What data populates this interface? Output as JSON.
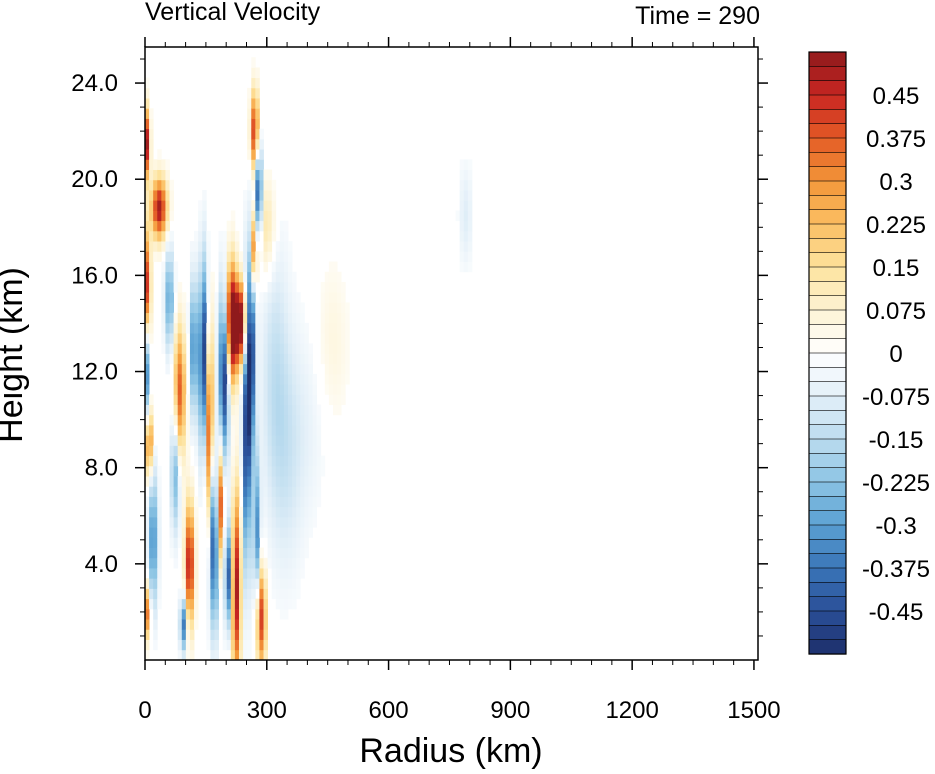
{
  "chart_data": {
    "type": "heatmap",
    "title": "Vertical Velocity",
    "subtitle": "Time = 290",
    "xlabel": "Radius (km)",
    "ylabel": "Height (km)",
    "xlim": [
      0,
      1510
    ],
    "ylim": [
      0,
      25.5
    ],
    "x_ticks": [
      0,
      300,
      600,
      900,
      1200,
      1500
    ],
    "x_tick_labels": [
      "0",
      "300",
      "600",
      "900",
      "1200",
      "1500"
    ],
    "y_ticks": [
      4,
      8,
      12,
      16,
      20,
      24
    ],
    "y_tick_labels": [
      "4.0",
      "8.0",
      "12.0",
      "16.0",
      "20.0",
      "24.0"
    ],
    "colorbar": {
      "min": -0.525,
      "max": 0.525,
      "step": 0.025,
      "label_values": [
        -0.45,
        -0.375,
        -0.3,
        -0.225,
        -0.15,
        -0.075,
        0,
        0.075,
        0.15,
        0.225,
        0.3,
        0.375,
        0.45
      ],
      "labels": [
        "-0.45",
        "-0.375",
        "-0.3",
        "-0.225",
        "-0.15",
        "-0.075",
        "0",
        "0.075",
        "0.15",
        "0.225",
        "0.3",
        "0.375",
        "0.45"
      ],
      "stops": [
        [
          -0.525,
          "#1d2f6b"
        ],
        [
          -0.45,
          "#2a4f98"
        ],
        [
          -0.375,
          "#3a75b8"
        ],
        [
          -0.3,
          "#5aa0d2"
        ],
        [
          -0.225,
          "#8cc4e4"
        ],
        [
          -0.15,
          "#bcdcef"
        ],
        [
          -0.075,
          "#e2eff8"
        ],
        [
          0,
          "#ffffff"
        ],
        [
          0.075,
          "#fdf3d4"
        ],
        [
          0.15,
          "#fde39e"
        ],
        [
          0.225,
          "#fbbf63"
        ],
        [
          0.3,
          "#f39639"
        ],
        [
          0.375,
          "#e35b26"
        ],
        [
          0.45,
          "#c92622"
        ],
        [
          0.525,
          "#8f1a1c"
        ]
      ]
    },
    "field_features": [
      {
        "r": 5,
        "z": 21.5,
        "sr": 5,
        "sz": 1.0,
        "w": 0.5
      },
      {
        "r": 35,
        "z": 18.8,
        "sr": 14,
        "sz": 0.9,
        "w": 0.5
      },
      {
        "r": 5,
        "z": 15.5,
        "sr": 6,
        "sz": 1.6,
        "w": 0.45
      },
      {
        "r": 0,
        "z": 12.0,
        "sr": 6,
        "sz": 1.5,
        "w": -0.5
      },
      {
        "r": 10,
        "z": 9.0,
        "sr": 6,
        "sz": 1.0,
        "w": 0.4
      },
      {
        "r": 20,
        "z": 5.0,
        "sr": 8,
        "sz": 2.0,
        "w": -0.35
      },
      {
        "r": 5,
        "z": 2.0,
        "sr": 6,
        "sz": 0.8,
        "w": 0.35
      },
      {
        "r": 60,
        "z": 15.0,
        "sr": 8,
        "sz": 1.5,
        "w": -0.3
      },
      {
        "r": 85,
        "z": 11.0,
        "sr": 10,
        "sz": 2.0,
        "w": 0.4
      },
      {
        "r": 75,
        "z": 8.0,
        "sr": 8,
        "sz": 1.8,
        "w": -0.3
      },
      {
        "r": 110,
        "z": 4.0,
        "sr": 8,
        "sz": 1.8,
        "w": 0.5
      },
      {
        "r": 95,
        "z": 1.5,
        "sr": 6,
        "sz": 0.8,
        "w": -0.4
      },
      {
        "r": 120,
        "z": 13.0,
        "sr": 7,
        "sz": 2.0,
        "w": -0.35
      },
      {
        "r": 145,
        "z": 12.5,
        "sr": 8,
        "sz": 2.8,
        "w": -0.55
      },
      {
        "r": 158,
        "z": 10.0,
        "sr": 7,
        "sz": 3.0,
        "w": 0.5
      },
      {
        "r": 170,
        "z": 5.0,
        "sr": 8,
        "sz": 2.5,
        "w": -0.5
      },
      {
        "r": 185,
        "z": 6.5,
        "sr": 6,
        "sz": 1.8,
        "w": 0.45
      },
      {
        "r": 195,
        "z": 12.0,
        "sr": 9,
        "sz": 2.5,
        "w": -0.55
      },
      {
        "r": 212,
        "z": 14.0,
        "sr": 10,
        "sz": 1.8,
        "w": 0.6
      },
      {
        "r": 235,
        "z": 14.0,
        "sr": 12,
        "sz": 1.2,
        "w": 0.6
      },
      {
        "r": 225,
        "z": 3.0,
        "sr": 8,
        "sz": 2.8,
        "w": 0.5
      },
      {
        "r": 205,
        "z": 3.5,
        "sr": 6,
        "sz": 1.5,
        "w": -0.45
      },
      {
        "r": 250,
        "z": 9.5,
        "sr": 7,
        "sz": 4.0,
        "w": -0.5
      },
      {
        "r": 262,
        "z": 13.0,
        "sr": 6,
        "sz": 3.0,
        "w": -0.55
      },
      {
        "r": 270,
        "z": 22.0,
        "sr": 7,
        "sz": 1.2,
        "w": 0.45
      },
      {
        "r": 280,
        "z": 19.5,
        "sr": 6,
        "sz": 1.3,
        "w": -0.5
      },
      {
        "r": 268,
        "z": 17.0,
        "sr": 5,
        "sz": 1.2,
        "w": 0.45
      },
      {
        "r": 275,
        "z": 5.0,
        "sr": 6,
        "sz": 2.5,
        "w": -0.35
      },
      {
        "r": 285,
        "z": 1.8,
        "sr": 9,
        "sz": 1.5,
        "w": 0.45
      },
      {
        "r": 320,
        "z": 12.0,
        "sr": 25,
        "sz": 4.0,
        "w": -0.12
      },
      {
        "r": 350,
        "z": 8.0,
        "sr": 30,
        "sz": 3.5,
        "w": -0.08
      },
      {
        "r": 300,
        "z": 18.0,
        "sr": 15,
        "sz": 1.5,
        "w": 0.15
      },
      {
        "r": 400,
        "z": 10.0,
        "sr": 40,
        "sz": 3.0,
        "w": -0.05
      },
      {
        "r": 460,
        "z": 13.0,
        "sr": 30,
        "sz": 2.5,
        "w": 0.06
      },
      {
        "r": 790,
        "z": 18.5,
        "sr": 12,
        "sz": 1.5,
        "w": -0.08
      }
    ]
  }
}
